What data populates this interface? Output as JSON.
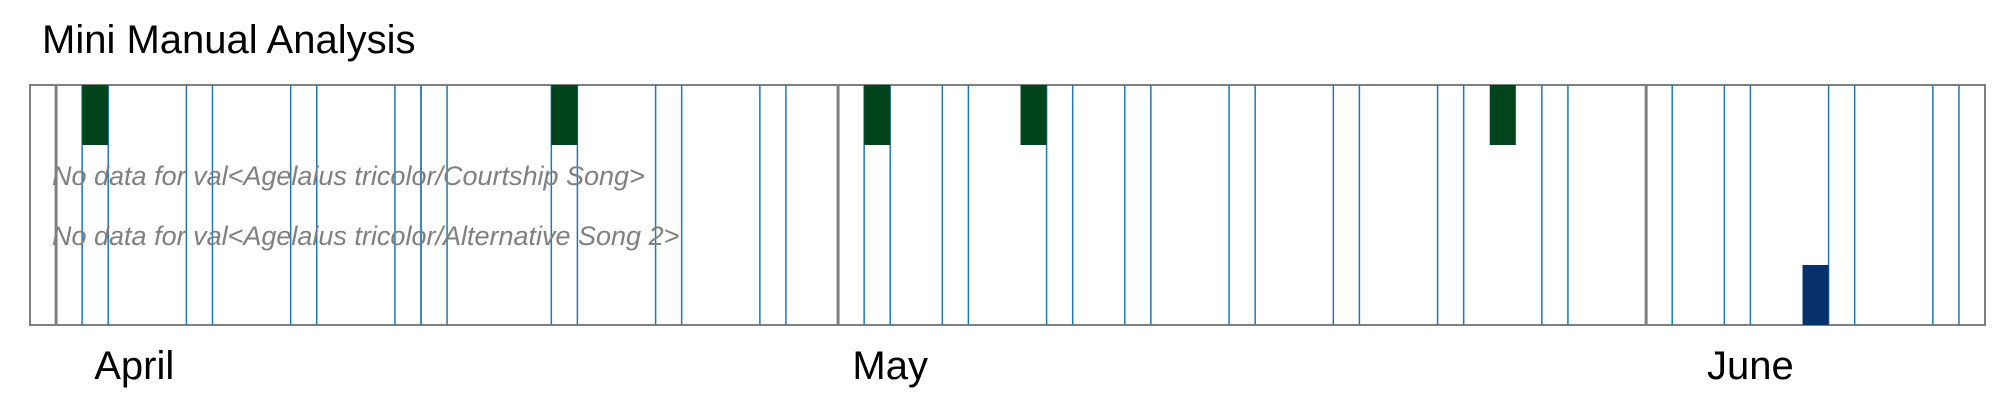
{
  "title": "Mini Manual Analysis",
  "chart_data": {
    "type": "heatmap",
    "title": "Mini Manual Analysis",
    "x_axis": {
      "type": "date",
      "range": [
        "2021-03-31",
        "2021-06-14"
      ],
      "month_labels": [
        {
          "label": "April",
          "month_start": "2021-04-01",
          "label_date": "2021-04-04"
        },
        {
          "label": "May",
          "month_start": "2021-05-01",
          "label_date": "2021-05-03"
        },
        {
          "label": "June",
          "month_start": "2021-06-01",
          "label_date": "2021-06-05"
        }
      ]
    },
    "recording_days": [
      "2021-04-02",
      "2021-04-06",
      "2021-04-10",
      "2021-04-14",
      "2021-04-15",
      "2021-04-20",
      "2021-04-24",
      "2021-04-28",
      "2021-05-02",
      "2021-05-05",
      "2021-05-09",
      "2021-05-12",
      "2021-05-16",
      "2021-05-20",
      "2021-05-24",
      "2021-05-28",
      "2021-06-01",
      "2021-06-04",
      "2021-06-08",
      "2021-06-12"
    ],
    "rows": [
      {
        "name": "",
        "color": "#00441b",
        "detections": [
          "2021-04-02",
          "2021-04-20",
          "2021-05-02",
          "2021-05-08",
          "2021-05-26"
        ]
      },
      {
        "name": "",
        "no_data_text": "No data for val<Agelaius tricolor/Courtship Song>",
        "detections": []
      },
      {
        "name": "",
        "no_data_text": "No data for val<Agelaius tricolor/Alternative Song 2>",
        "detections": []
      },
      {
        "name": "",
        "color": "#08306b",
        "detections": [
          "2021-06-07"
        ]
      }
    ],
    "grid": false
  },
  "colors": {
    "day_line": "#1f77b4",
    "month_divider": "#808080",
    "frame": "#808080"
  }
}
